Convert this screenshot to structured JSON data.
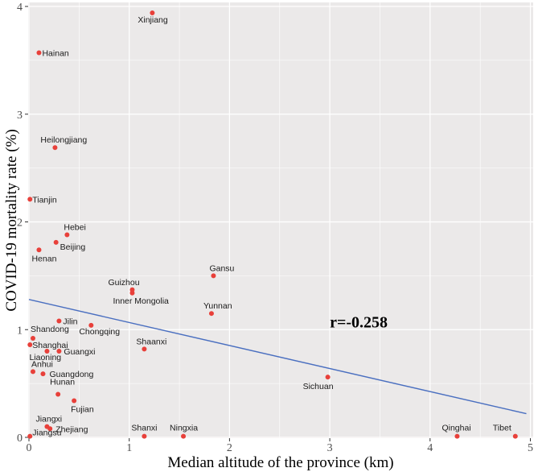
{
  "chart_data": {
    "type": "scatter",
    "xlabel": "Median altitude of the province (km)",
    "ylabel": "COVID-19 mortality rate (%)",
    "xlim": [
      0,
      5
    ],
    "ylim": [
      0,
      4
    ],
    "xticks": [
      "0",
      "1",
      "2",
      "3",
      "4",
      "5"
    ],
    "yticks": [
      "0",
      "1",
      "2",
      "3",
      "4"
    ],
    "grid": true,
    "annotation": "r=-0.258",
    "colors": {
      "point": "#e8403a",
      "line": "#4a6fc0",
      "panel": "#ebe9e9",
      "grid": "#ffffff"
    },
    "points": [
      {
        "name": "Xinjiang",
        "x": 1.23,
        "y": 3.94
      },
      {
        "name": "Hainan",
        "x": 0.1,
        "y": 3.57
      },
      {
        "name": "Heilongjiang",
        "x": 0.26,
        "y": 2.69
      },
      {
        "name": "Tianjin",
        "x": 0.01,
        "y": 2.21
      },
      {
        "name": "Hebei",
        "x": 0.38,
        "y": 1.88
      },
      {
        "name": "Beijing",
        "x": 0.27,
        "y": 1.81
      },
      {
        "name": "Henan",
        "x": 0.1,
        "y": 1.74
      },
      {
        "name": "Gansu",
        "x": 1.84,
        "y": 1.5
      },
      {
        "name": "Guizhou",
        "x": 1.03,
        "y": 1.37
      },
      {
        "name": "Inner Mongolia",
        "x": 1.03,
        "y": 1.34
      },
      {
        "name": "Yunnan",
        "x": 1.82,
        "y": 1.15
      },
      {
        "name": "Jilin",
        "x": 0.3,
        "y": 1.08
      },
      {
        "name": "Chongqing",
        "x": 0.62,
        "y": 1.04
      },
      {
        "name": "Shandong",
        "x": 0.04,
        "y": 0.92
      },
      {
        "name": "Shanghai",
        "x": 0.01,
        "y": 0.86
      },
      {
        "name": "Shaanxi",
        "x": 1.15,
        "y": 0.82
      },
      {
        "name": "Liaoning",
        "x": 0.18,
        "y": 0.8
      },
      {
        "name": "Guangxi",
        "x": 0.3,
        "y": 0.8
      },
      {
        "name": "Anhui",
        "x": 0.04,
        "y": 0.61
      },
      {
        "name": "Guangdong",
        "x": 0.14,
        "y": 0.59
      },
      {
        "name": "Sichuan",
        "x": 2.98,
        "y": 0.56
      },
      {
        "name": "Hunan",
        "x": 0.29,
        "y": 0.4
      },
      {
        "name": "Fujian",
        "x": 0.45,
        "y": 0.34
      },
      {
        "name": "Jiangxi",
        "x": 0.18,
        "y": 0.1
      },
      {
        "name": "Zhejiang",
        "x": 0.21,
        "y": 0.08
      },
      {
        "name": "Jiangsu",
        "x": 0.01,
        "y": 0.01
      },
      {
        "name": "Shanxi",
        "x": 1.15,
        "y": 0.01
      },
      {
        "name": "Ningxia",
        "x": 1.54,
        "y": 0.01
      },
      {
        "name": "Qinghai",
        "x": 4.27,
        "y": 0.01
      },
      {
        "name": "Tibet",
        "x": 4.85,
        "y": 0.01
      }
    ],
    "trend_line": {
      "x": [
        0,
        4.96
      ],
      "y": [
        1.28,
        0.22
      ]
    }
  }
}
